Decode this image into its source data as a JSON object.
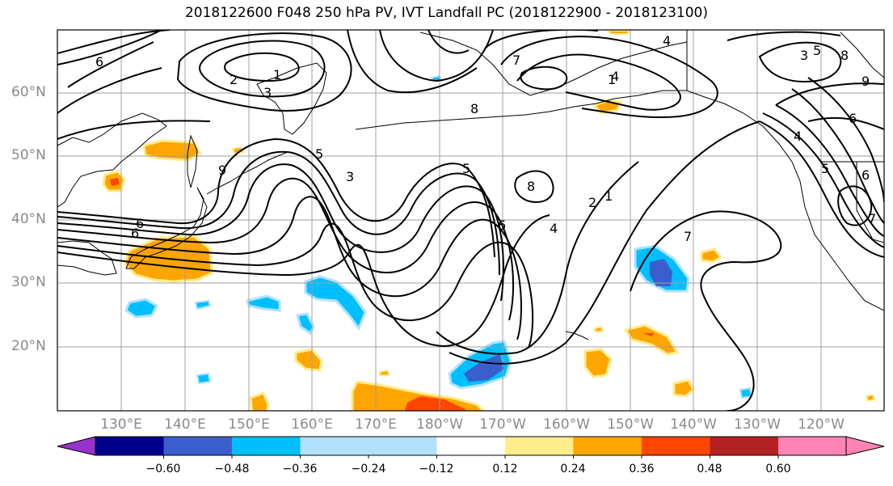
{
  "title": "2018122600 F048 250 hPa PV, IVT Landfall PC (2018122900 - 2018123100)",
  "map": {
    "lat_labels": [
      "60°N",
      "50°N",
      "40°N",
      "30°N",
      "20°N"
    ],
    "lon_labels": [
      "130°E",
      "140°E",
      "150°E",
      "160°E",
      "170°E",
      "180°W",
      "170°W",
      "160°W",
      "150°W",
      "140°W",
      "130°W",
      "120°W"
    ],
    "contour_labels": [
      "6",
      "2",
      "1",
      "3",
      "7",
      "8",
      "4",
      "5",
      "6",
      "9",
      "1",
      "2",
      "1",
      "8",
      "6",
      "4",
      "5",
      "6",
      "7",
      "4",
      "3",
      "5",
      "6",
      "9",
      "8",
      "5",
      "3",
      "7",
      "4",
      "6"
    ]
  },
  "colorbar": {
    "colors": [
      "#9932cc",
      "#00008b",
      "#3a5fcd",
      "#00bfff",
      "#b0e2ff",
      "#ffffff",
      "#ffec8b",
      "#ffa500",
      "#ff4500",
      "#b22222",
      "#ff83b4"
    ],
    "ticks": [
      "−0.60",
      "−0.48",
      "−0.36",
      "−0.24",
      "−0.12",
      "0.12",
      "0.24",
      "0.36",
      "0.48",
      "0.60"
    ]
  }
}
